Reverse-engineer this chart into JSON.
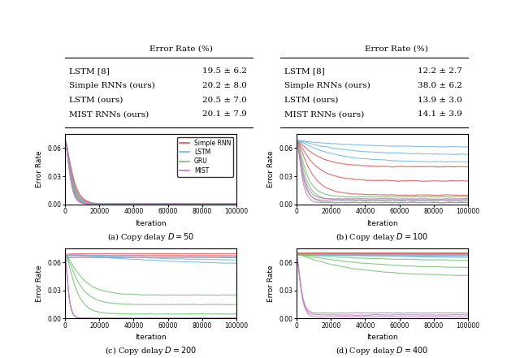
{
  "table_left": {
    "header": "Error Rate (%)",
    "rows": [
      [
        "LSTM [8]",
        "19.5 ± 6.2"
      ],
      [
        "Simple RNNs (ours)",
        "20.2 ± 8.0"
      ],
      [
        "LSTM (ours)",
        "20.5 ± 7.0"
      ],
      [
        "MIST RNNs (ours)",
        "20.1 ± 7.9"
      ]
    ]
  },
  "table_right": {
    "header": "Error Rate (%)",
    "rows": [
      [
        "LSTM [8]",
        "12.2 ± 2.7"
      ],
      [
        "Simple RNNs (ours)",
        "38.0 ± 6.2"
      ],
      [
        "LSTM (ours)",
        "13.9 ± 3.0"
      ],
      [
        "MIST RNNs (ours)",
        "14.1 ± 3.9"
      ]
    ]
  },
  "colors": {
    "simple_rnn": "#E05555",
    "lstm": "#6EB5E0",
    "gru": "#70C070",
    "mist": "#C07EC0"
  },
  "subplot_titles": [
    "(a) Copy delay $D = 50$",
    "(b) Copy delay $D = 100$",
    "(c) Copy delay $D = 200$",
    "(d) Copy delay $D = 400$"
  ],
  "xlabel": "Iteration",
  "ylabel": "Error Rate",
  "ylim": [
    0,
    0.075
  ],
  "xlim": [
    0,
    100000
  ],
  "yticks": [
    0.0,
    0.03,
    0.06
  ],
  "xticks": [
    0,
    20000,
    40000,
    60000,
    80000,
    100000
  ],
  "xticklabels": [
    "0",
    "20000",
    "40000",
    "60000",
    "80000",
    "100000"
  ],
  "legend_labels": [
    "Simple RNN",
    "LSTM",
    "GRU",
    "MIST"
  ]
}
